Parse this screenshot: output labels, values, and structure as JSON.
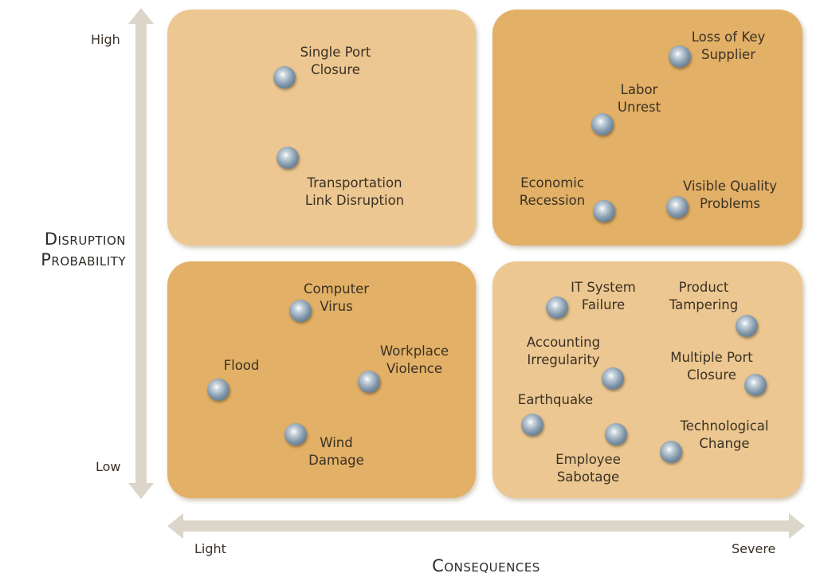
{
  "colors": {
    "quadrant_light": "#ecc791",
    "quadrant_dark": "#e2b066",
    "axis": "#dcd5ca",
    "marker": "#7f95a8"
  },
  "y_axis": {
    "title_line1": "Disruption",
    "title_line2": "Probability",
    "high": "High",
    "low": "Low"
  },
  "x_axis": {
    "title": "Consequences",
    "light": "Light",
    "severe": "Severe"
  },
  "quadrants": {
    "top_left": {
      "items": [
        {
          "label": [
            "Single Port",
            "Closure"
          ]
        },
        {
          "label": [
            "Transportation",
            "Link Disruption"
          ]
        }
      ]
    },
    "top_right": {
      "items": [
        {
          "label": [
            "Loss of Key",
            "Supplier"
          ]
        },
        {
          "label": [
            "Labor",
            "Unrest"
          ]
        },
        {
          "label": [
            "Economic",
            "Recession"
          ]
        },
        {
          "label": [
            "Visible Quality",
            "Problems"
          ]
        }
      ]
    },
    "bottom_left": {
      "items": [
        {
          "label": [
            "Computer",
            "Virus"
          ]
        },
        {
          "label": [
            "Flood"
          ]
        },
        {
          "label": [
            "Workplace",
            "Violence"
          ]
        },
        {
          "label": [
            "Wind",
            "Damage"
          ]
        }
      ]
    },
    "bottom_right": {
      "items": [
        {
          "label": [
            "IT System",
            "Failure"
          ]
        },
        {
          "label": [
            "Product",
            "Tampering"
          ]
        },
        {
          "label": [
            "Accounting",
            "Irregularity"
          ]
        },
        {
          "label": [
            "Multiple Port",
            "Closure"
          ]
        },
        {
          "label": [
            "Earthquake"
          ]
        },
        {
          "label": [
            "Employee",
            "Sabotage"
          ]
        },
        {
          "label": [
            "Technological",
            "Change"
          ]
        }
      ]
    }
  }
}
